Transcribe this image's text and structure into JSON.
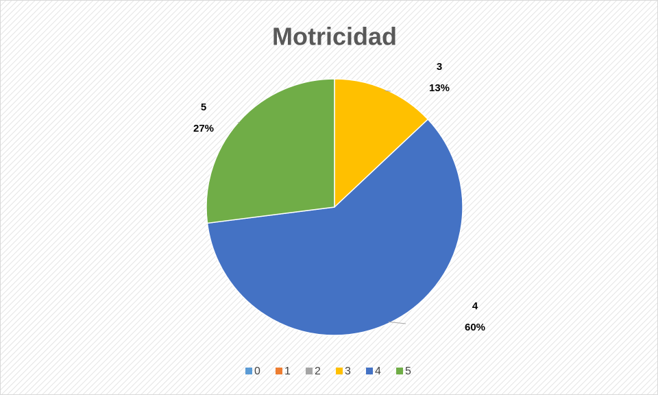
{
  "chart_data": {
    "type": "pie",
    "title": "Motricidad",
    "categories": [
      "0",
      "1",
      "2",
      "3",
      "4",
      "5"
    ],
    "values": [
      0,
      0,
      0,
      13,
      60,
      27
    ],
    "value_labels": [
      null,
      null,
      null,
      "13%",
      "60%",
      "27%"
    ],
    "colors": [
      "#5b9bd5",
      "#ed7d31",
      "#a5a5a5",
      "#ffc000",
      "#4472c4",
      "#70ad47"
    ],
    "legend": "bottom"
  }
}
